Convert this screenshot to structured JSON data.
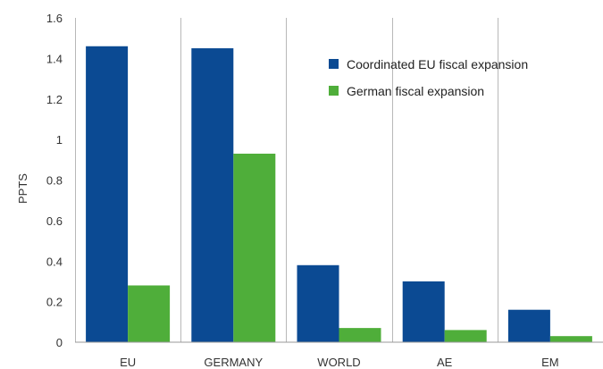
{
  "chart_data": {
    "type": "bar",
    "categories": [
      "EU",
      "GERMANY",
      "WORLD",
      "AE",
      "EM"
    ],
    "series": [
      {
        "name": "Coordinated EU fiscal expansion",
        "color": "#0b4a93",
        "values": [
          1.46,
          1.45,
          0.38,
          0.3,
          0.16
        ]
      },
      {
        "name": "German fiscal expansion",
        "color": "#4fae3a",
        "values": [
          0.28,
          0.93,
          0.07,
          0.06,
          0.03
        ]
      }
    ],
    "ylabel": "PPTS",
    "xlabel": "",
    "ylim": [
      0,
      1.6
    ],
    "yticks": [
      "0",
      "0.2",
      "0.4",
      "0.6",
      "0.8",
      "1",
      "1.2",
      "1.4",
      "1.6"
    ],
    "grid": {
      "vertical_separators": true,
      "horizontal": false
    },
    "legend_position": "top-right"
  }
}
